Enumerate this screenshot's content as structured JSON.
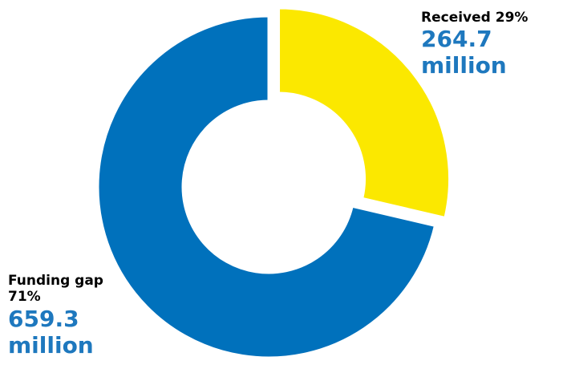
{
  "chart_data": {
    "type": "pie",
    "variant": "donut",
    "categories": [
      "Received",
      "Funding gap"
    ],
    "values": [
      264.7,
      659.3
    ],
    "percentages": [
      29,
      71
    ],
    "unit": "million",
    "colors": [
      "#FBE800",
      "#0071BC"
    ],
    "exploded": [
      "Received"
    ],
    "labels": {
      "received": {
        "name_pct": "Received 29%",
        "amount": "264.7",
        "unit": "million"
      },
      "gap": {
        "name_pct": "Funding gap 71%",
        "amount": "659.3",
        "unit": "million"
      }
    },
    "amount_color": "#1E78BE"
  }
}
